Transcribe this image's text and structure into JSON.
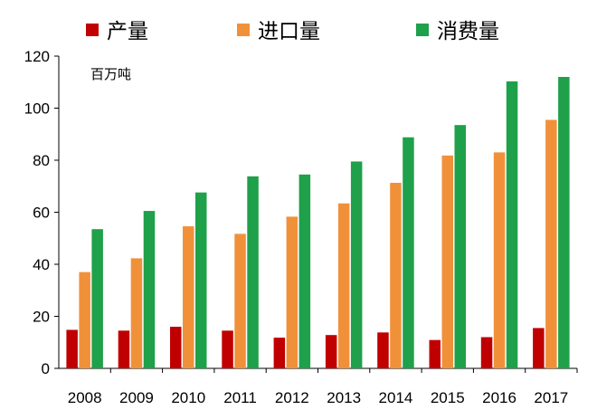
{
  "chart_data": {
    "type": "bar",
    "categories": [
      "2008",
      "2009",
      "2010",
      "2011",
      "2012",
      "2013",
      "2014",
      "2015",
      "2016",
      "2017"
    ],
    "series": [
      {
        "name": "产量",
        "color": "#c00000",
        "values": [
          14.8,
          14.5,
          16.0,
          14.5,
          11.8,
          12.8,
          13.8,
          10.9,
          12.0,
          15.5
        ]
      },
      {
        "name": "进口量",
        "color": "#f0913a",
        "values": [
          37.0,
          42.3,
          54.6,
          51.7,
          58.3,
          63.4,
          71.3,
          81.8,
          83.0,
          95.5
        ]
      },
      {
        "name": "消费量",
        "color": "#1fa04a",
        "values": [
          53.5,
          60.5,
          67.6,
          73.8,
          74.5,
          79.5,
          88.8,
          93.5,
          110.3,
          112.0
        ]
      }
    ],
    "ylim": [
      0,
      120
    ],
    "yticks": [
      0,
      20,
      40,
      60,
      80,
      100,
      120
    ],
    "unit": "百万吨",
    "legend_position": "top",
    "grid": false
  }
}
